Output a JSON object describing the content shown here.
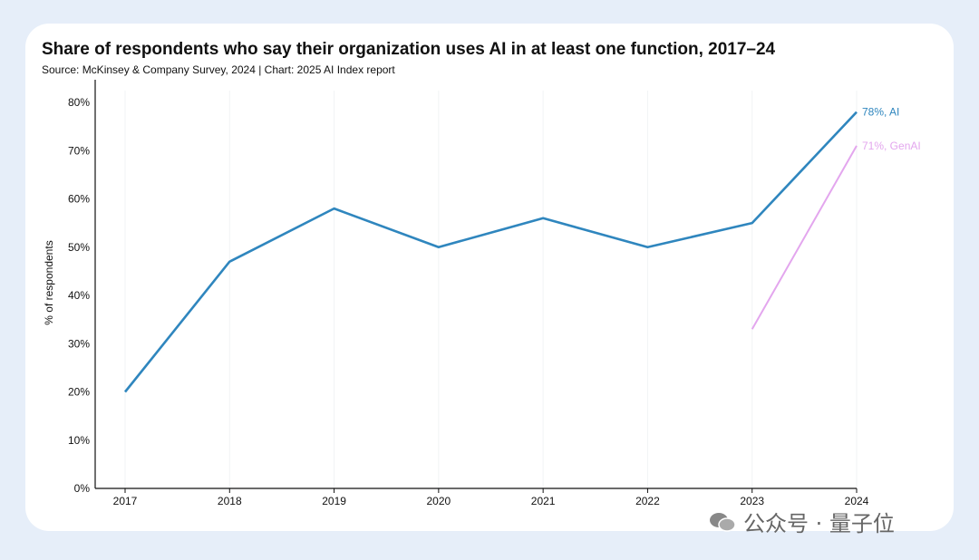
{
  "chart_data": {
    "type": "line",
    "title": "Share of respondents who say their organization uses AI in at least one function, 2017–24",
    "subtitle": "Source: McKinsey & Company Survey, 2024 | Chart: 2025 AI Index report",
    "xlabel": "",
    "ylabel": "% of respondents",
    "x": [
      2017,
      2018,
      2019,
      2020,
      2021,
      2022,
      2023,
      2024
    ],
    "x_tick_labels": [
      "2017",
      "2018",
      "2019",
      "2020",
      "2021",
      "2022",
      "2023",
      "2024"
    ],
    "y_tick_labels": [
      "0%",
      "10%",
      "20%",
      "30%",
      "40%",
      "50%",
      "60%",
      "70%",
      "80%"
    ],
    "ylim": [
      0,
      80
    ],
    "grid": "vertical, faint",
    "series": [
      {
        "name": "AI",
        "color": "#2f86be",
        "x": [
          2017,
          2018,
          2019,
          2020,
          2021,
          2022,
          2023,
          2024
        ],
        "values": [
          20,
          47,
          58,
          50,
          56,
          50,
          55,
          78
        ],
        "end_label": "78%, AI"
      },
      {
        "name": "GenAI",
        "color": "#e3a6ee",
        "x": [
          2023,
          2024
        ],
        "values": [
          33,
          71
        ],
        "end_label": "71%, GenAI"
      }
    ]
  },
  "watermark": {
    "text": "公众号 · 量子位",
    "icon": "wechat-icon"
  }
}
